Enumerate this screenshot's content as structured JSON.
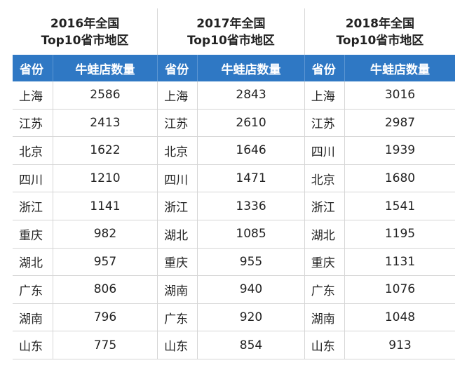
{
  "groups": [
    {
      "line1": "2016年全国",
      "line2": "Top10省市地区"
    },
    {
      "line1": "2017年全国",
      "line2": "Top10省市地区"
    },
    {
      "line1": "2018年全国",
      "line2": "Top10省市地区"
    }
  ],
  "header": {
    "province_label": "省份",
    "count_label": "牛蛙店数量"
  },
  "colors": {
    "header_bg": "#2f78c4",
    "header_text": "#ffffff",
    "grid": "#d6d6d6"
  },
  "rows": [
    [
      {
        "p": "上海",
        "v": "2586"
      },
      {
        "p": "上海",
        "v": "2843"
      },
      {
        "p": "上海",
        "v": "3016"
      }
    ],
    [
      {
        "p": "江苏",
        "v": "2413"
      },
      {
        "p": "江苏",
        "v": "2610"
      },
      {
        "p": "江苏",
        "v": "2987"
      }
    ],
    [
      {
        "p": "北京",
        "v": "1622"
      },
      {
        "p": "北京",
        "v": "1646"
      },
      {
        "p": "四川",
        "v": "1939"
      }
    ],
    [
      {
        "p": "四川",
        "v": "1210"
      },
      {
        "p": "四川",
        "v": "1471"
      },
      {
        "p": "北京",
        "v": "1680"
      }
    ],
    [
      {
        "p": "浙江",
        "v": "1141"
      },
      {
        "p": "浙江",
        "v": "1336"
      },
      {
        "p": "浙江",
        "v": "1541"
      }
    ],
    [
      {
        "p": "重庆",
        "v": "982"
      },
      {
        "p": "湖北",
        "v": "1085"
      },
      {
        "p": "湖北",
        "v": "1195"
      }
    ],
    [
      {
        "p": "湖北",
        "v": "957"
      },
      {
        "p": "重庆",
        "v": "955"
      },
      {
        "p": "重庆",
        "v": "1131"
      }
    ],
    [
      {
        "p": "广东",
        "v": "806"
      },
      {
        "p": "湖南",
        "v": "940"
      },
      {
        "p": "广东",
        "v": "1076"
      }
    ],
    [
      {
        "p": "湖南",
        "v": "796"
      },
      {
        "p": "广东",
        "v": "920"
      },
      {
        "p": "湖南",
        "v": "1048"
      }
    ],
    [
      {
        "p": "山东",
        "v": "775"
      },
      {
        "p": "山东",
        "v": "854"
      },
      {
        "p": "山东",
        "v": "913"
      }
    ]
  ]
}
